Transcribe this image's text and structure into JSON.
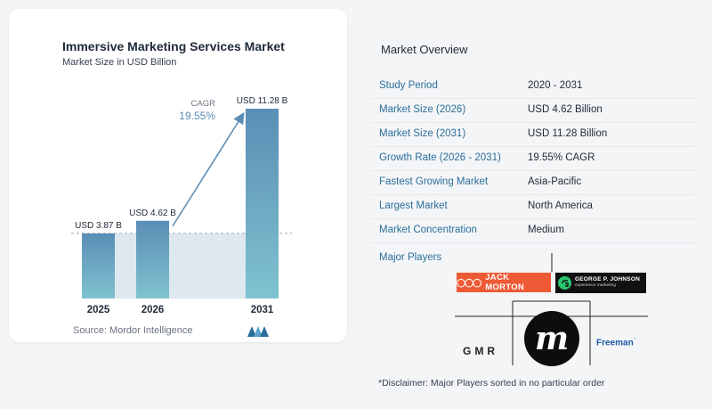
{
  "chart_data": {
    "type": "bar",
    "title": "Immersive Marketing Services Market",
    "subtitle": "Market Size in USD Billion",
    "categories": [
      "2025",
      "2026",
      "2031"
    ],
    "values": [
      3.87,
      4.62,
      11.28
    ],
    "data_labels": [
      "USD 3.87 B",
      "USD 4.62 B",
      "USD 11.28 B"
    ],
    "annotation": {
      "label": "CAGR",
      "value": "19.55%"
    },
    "ylim": [
      0,
      11.28
    ],
    "grid": false,
    "legend": "none",
    "colors": {
      "bar_top": "#5b8db5",
      "bar_bottom": "#7fc3cf",
      "arrow": "#5b8db5",
      "band": "#dde8f0"
    }
  },
  "source": "Source:  Mordor Intelligence",
  "source_logo": "mordor-intelligence-logo",
  "overview": {
    "title": "Market Overview",
    "rows": [
      {
        "label": "Study Period",
        "value": "2020 - 2031"
      },
      {
        "label": "Market Size (2026)",
        "value": "USD 4.62 Billion"
      },
      {
        "label": "Market Size (2031)",
        "value": "USD 11.28 Billion"
      },
      {
        "label": "Growth Rate (2026 - 2031)",
        "value": "19.55% CAGR"
      },
      {
        "label": "Fastest Growing Market",
        "value": "Asia-Pacific"
      },
      {
        "label": "Largest Market",
        "value": "North America"
      },
      {
        "label": "Market Concentration",
        "value": "Medium"
      }
    ]
  },
  "players": {
    "title": "Major Players",
    "logos": {
      "jack_morton": "JACK MORTON",
      "gpj_name": "GEORGE P. JOHNSON",
      "gpj_sub": "experience marketing",
      "gmr": "GMR",
      "momentum": "m",
      "freeman": "Freeman"
    }
  },
  "disclaimer": "*Disclaimer: Major Players sorted in no particular order"
}
